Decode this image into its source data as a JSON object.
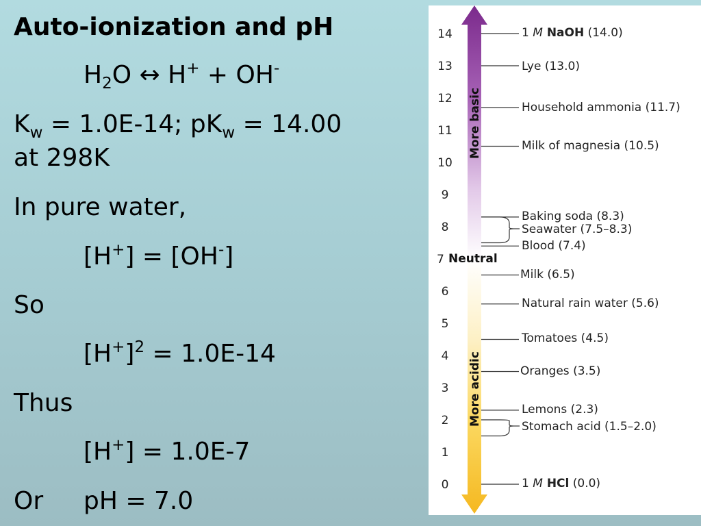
{
  "slide": {
    "title": "Auto-ionization and pH",
    "equation": {
      "p1": "H",
      "p2": "2",
      "p3": "O ↔ H",
      "p4": "+",
      "p5": " + OH",
      "p6": "-"
    },
    "kw": {
      "p1": "K",
      "p2": "w",
      "p3": " = 1.0E-14; pK",
      "p4": "w",
      "p5": " = 14.00",
      "p6": "at 298K"
    },
    "pure_water": "In pure water,",
    "equality": {
      "p1": "[H",
      "p2": "+",
      "p3": "] = [OH",
      "p4": "-",
      "p5": "]"
    },
    "so": "So",
    "squared": {
      "p1": "[H",
      "p2": "+",
      "p3": "]",
      "p4": "2",
      "p5": " = 1.0E-14"
    },
    "thus": "Thus",
    "conc": {
      "p1": "[H",
      "p2": "+",
      "p3": "] = 1.0E-7"
    },
    "or": "Or",
    "ph": "pH = 7.0"
  },
  "ph_scale": {
    "ticks": [
      "14",
      "13",
      "12",
      "11",
      "10",
      "9",
      "8",
      "7",
      "6",
      "5",
      "4",
      "3",
      "2",
      "1",
      "0"
    ],
    "neutral_label": "Neutral",
    "basic_label": "More basic",
    "acidic_label": "More acidic",
    "colors": {
      "basic": "#7b2a8c",
      "neutral": "#ffffff",
      "acidic": "#f5b820"
    },
    "items": [
      {
        "pre": "1 ",
        "ital": "M",
        "bold": " NaOH",
        "rest": " (14.0)",
        "ph": 14.0
      },
      {
        "pre": "Lye (13.0)",
        "ph": 13.0
      },
      {
        "pre": "Household ammonia (11.7)",
        "ph": 11.7
      },
      {
        "pre": "Milk of magnesia (10.5)",
        "ph": 10.5
      },
      {
        "pre": "Baking soda (8.3)",
        "ph": 8.3
      },
      {
        "pre": "Seawater (7.5–8.3)",
        "ph": [
          7.5,
          8.3
        ]
      },
      {
        "pre": "Blood (7.4)",
        "ph": 7.4
      },
      {
        "pre": "Milk (6.5)",
        "ph": 6.5
      },
      {
        "pre": "Natural rain water (5.6)",
        "ph": 5.6
      },
      {
        "pre": "Tomatoes (4.5)",
        "ph": 4.5
      },
      {
        "pre": "Oranges (3.5)",
        "ph": 3.5
      },
      {
        "pre": "Lemons (2.3)",
        "ph": 2.3
      },
      {
        "pre": "Stomach acid (1.5–2.0)",
        "ph": [
          1.5,
          2.0
        ]
      },
      {
        "pre": "1 ",
        "ital": "M",
        "bold": " HCl",
        "rest": " (0.0)",
        "ph": 0.0
      }
    ]
  }
}
